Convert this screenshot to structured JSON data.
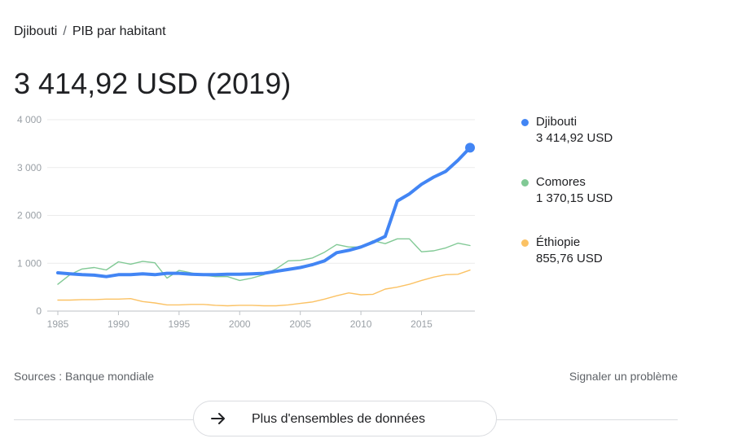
{
  "breadcrumb": {
    "country": "Djibouti",
    "separator": "/",
    "indicator": "PIB par habitant"
  },
  "headline": "3 414,92 USD (2019)",
  "legend": [
    {
      "name": "Djibouti",
      "value": "3 414,92 USD",
      "color": "#4285f4"
    },
    {
      "name": "Comores",
      "value": "1 370,15 USD",
      "color": "#81c995"
    },
    {
      "name": "Éthiopie",
      "value": "855,76 USD",
      "color": "#fbc264"
    }
  ],
  "footer": {
    "sources": "Sources : Banque mondiale",
    "report": "Signaler un problème",
    "more_button": "Plus d'ensembles de données",
    "more_icon": "arrow-right-icon"
  },
  "chart_data": {
    "type": "line",
    "x": [
      1985,
      1986,
      1987,
      1988,
      1989,
      1990,
      1991,
      1992,
      1993,
      1994,
      1995,
      1996,
      1997,
      1998,
      1999,
      2000,
      2001,
      2002,
      2003,
      2004,
      2005,
      2006,
      2007,
      2008,
      2009,
      2010,
      2011,
      2012,
      2013,
      2014,
      2015,
      2016,
      2017,
      2018,
      2019
    ],
    "xticks": [
      1985,
      1990,
      1995,
      2000,
      2005,
      2010,
      2015
    ],
    "xtick_labels": [
      "1985",
      "1990",
      "1995",
      "2000",
      "2005",
      "2010",
      "2015"
    ],
    "yticks": [
      0,
      1000,
      2000,
      3000,
      4000
    ],
    "ytick_labels": [
      "0",
      "1 000",
      "2 000",
      "3 000",
      "4 000"
    ],
    "ylim": [
      0,
      4000
    ],
    "grid": true,
    "series": [
      {
        "name": "Djibouti",
        "color": "#4285f4",
        "emphasis": true,
        "values": [
          800,
          780,
          760,
          750,
          720,
          760,
          760,
          780,
          760,
          790,
          790,
          770,
          760,
          760,
          770,
          770,
          780,
          790,
          830,
          870,
          910,
          970,
          1050,
          1220,
          1270,
          1340,
          1440,
          1560,
          2300,
          2450,
          2650,
          2800,
          2920,
          3150,
          3414.92
        ]
      },
      {
        "name": "Comores",
        "color": "#81c995",
        "emphasis": false,
        "values": [
          560,
          760,
          880,
          910,
          860,
          1030,
          980,
          1040,
          1010,
          690,
          850,
          800,
          750,
          720,
          720,
          640,
          690,
          760,
          880,
          1050,
          1060,
          1110,
          1230,
          1390,
          1340,
          1340,
          1470,
          1410,
          1510,
          1510,
          1240,
          1260,
          1320,
          1420,
          1370.15
        ]
      },
      {
        "name": "Éthiopie",
        "color": "#fbc264",
        "emphasis": false,
        "values": [
          230,
          230,
          240,
          240,
          250,
          250,
          260,
          200,
          170,
          130,
          130,
          140,
          140,
          120,
          110,
          120,
          120,
          110,
          110,
          130,
          160,
          190,
          250,
          320,
          380,
          340,
          350,
          460,
          500,
          560,
          640,
          710,
          760,
          770,
          855.76
        ]
      }
    ]
  }
}
